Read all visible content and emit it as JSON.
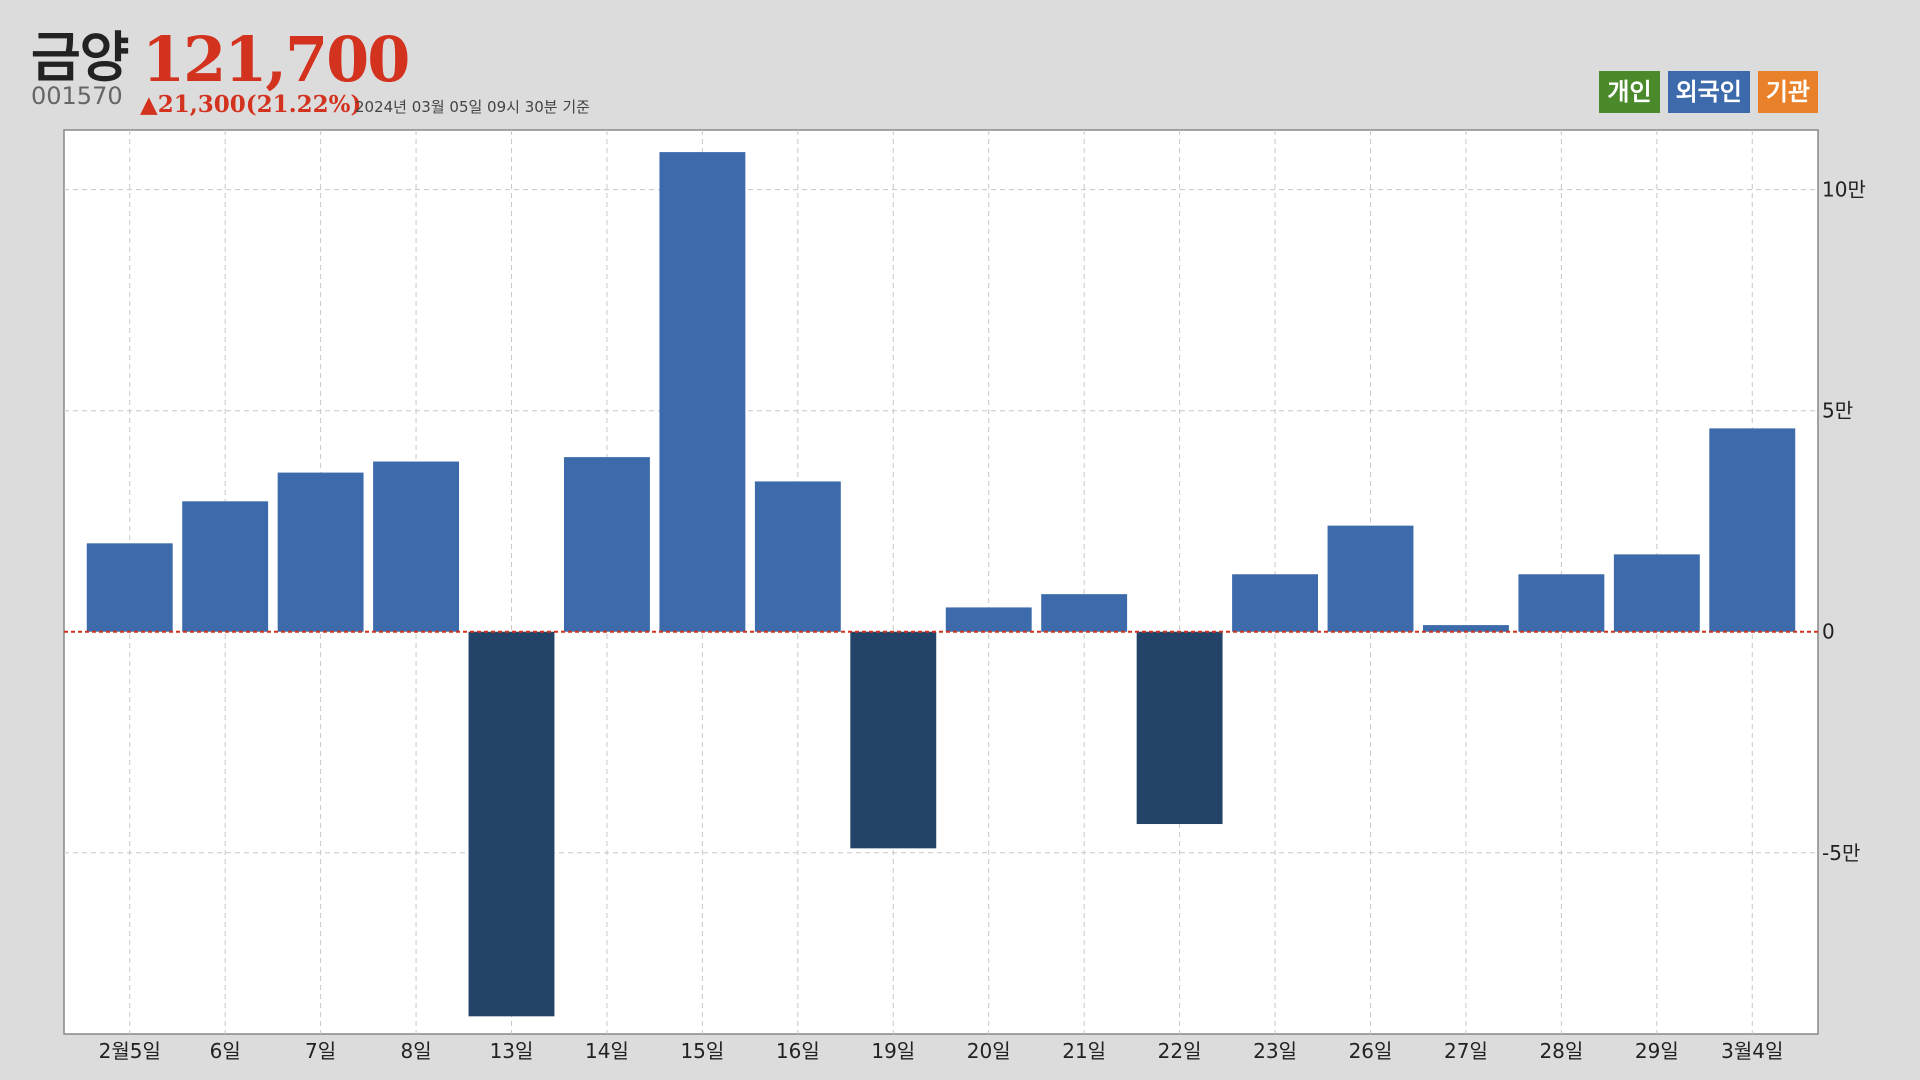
{
  "header": {
    "stock_name": "금양",
    "price": "121,700",
    "code": "001570",
    "change": "▲21,300(21.22%)",
    "timestamp": "2024년 03월 05일 09시 30분 기준"
  },
  "legend": [
    {
      "label": "개인",
      "color": "#4a8a2a"
    },
    {
      "label": "외국인",
      "color": "#3c6aab"
    },
    {
      "label": "기관",
      "color": "#e8812a"
    }
  ],
  "colors": {
    "positive_bar": "#3c6aab",
    "negative_bar": "#234369",
    "zero_line": "#d2321e",
    "grid": "#c8c8c8"
  },
  "chart_data": {
    "type": "bar",
    "series": [
      {
        "name": "외국인",
        "values": [
          20000,
          29500,
          36000,
          38500,
          -87000,
          39500,
          108500,
          34000,
          -49000,
          5500,
          8500,
          -43500,
          13000,
          24000,
          1500,
          13000,
          17500,
          46000
        ]
      }
    ],
    "categories": [
      "2월5일",
      "6일",
      "7일",
      "8일",
      "13일",
      "14일",
      "15일",
      "16일",
      "19일",
      "20일",
      "21일",
      "22일",
      "23일",
      "26일",
      "27일",
      "28일",
      "29일",
      "3월4일"
    ],
    "y_ticks": [
      {
        "value": 100000,
        "label": "10만"
      },
      {
        "value": 50000,
        "label": "5만"
      },
      {
        "value": 0,
        "label": "0"
      },
      {
        "value": -50000,
        "label": "-5만"
      }
    ],
    "ylim": [
      -91000,
      113500
    ],
    "grid": true,
    "legend_position": "top-right"
  }
}
